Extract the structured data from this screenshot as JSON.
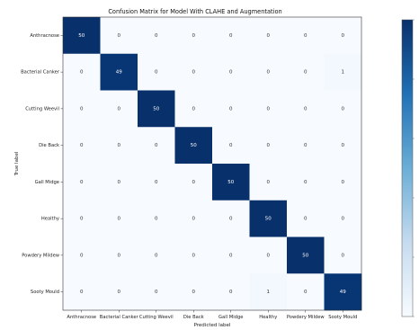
{
  "chart_data": {
    "type": "heatmap",
    "title": "Confusion Matrix for Model With CLAHE and Augmentation",
    "xlabel": "Predicted label",
    "ylabel": "True label",
    "x_categories": [
      "Anthracnose",
      "Bacterial Canker",
      "Cutting Weevil",
      "Die Back",
      "Gall Midge",
      "Healthy",
      "Powdery Mildew",
      "Sooty Mould"
    ],
    "y_categories": [
      "Anthracnose",
      "Bacterial Canker",
      "Cutting Weevil",
      "Die Back",
      "Gall Midge",
      "Healthy",
      "Powdery Mildew",
      "Sooty Mould"
    ],
    "values": [
      [
        50,
        0,
        0,
        0,
        0,
        0,
        0,
        0
      ],
      [
        0,
        49,
        0,
        0,
        0,
        0,
        0,
        1
      ],
      [
        0,
        0,
        50,
        0,
        0,
        0,
        0,
        0
      ],
      [
        0,
        0,
        0,
        50,
        0,
        0,
        0,
        0
      ],
      [
        0,
        0,
        0,
        0,
        50,
        0,
        0,
        0
      ],
      [
        0,
        0,
        0,
        0,
        0,
        50,
        0,
        0
      ],
      [
        0,
        0,
        0,
        0,
        0,
        0,
        50,
        0
      ],
      [
        0,
        0,
        0,
        0,
        0,
        1,
        0,
        49
      ]
    ],
    "color_range": [
      0,
      50
    ],
    "colormap": "Blues",
    "colors": {
      "low": "#f7fbff",
      "high": "#08306b"
    },
    "colorbar": true,
    "grid": false
  }
}
